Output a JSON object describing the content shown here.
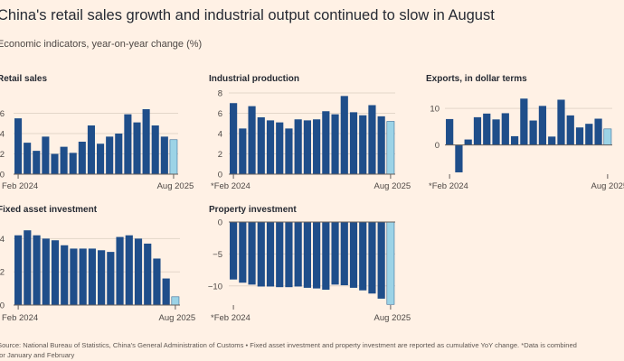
{
  "title": "China's retail sales growth and industrial output continued to slow in August",
  "subtitle": "Economic indicators, year-on-year change (%)",
  "source_line1": "Source: National Bureau of Statistics, China's General Administration of Customs • Fixed asset investment and property investment are reported as cumulative YoY change. *Data is combined",
  "source_line2": "for January and February",
  "colors": {
    "bar": "#1f4e8a",
    "highlight": "#9cd3e6",
    "highlight_stroke": "#3a6f9c",
    "grid": "#e3d6c9",
    "axis": "#66605c"
  },
  "chart_data": [
    {
      "type": "bar",
      "title": "Retail sales",
      "x": [
        "Feb 2024",
        "Mar 2024",
        "Apr 2024",
        "May 2024",
        "Jun 2024",
        "Jul 2024",
        "Aug 2024",
        "Sep 2024",
        "Oct 2024",
        "Nov 2024",
        "Dec 2024",
        "Jan-Feb 2025",
        "Mar 2025",
        "Apr 2025",
        "May 2025",
        "Jun 2025",
        "Jul 2025",
        "Aug 2025"
      ],
      "values": [
        5.5,
        3.1,
        2.3,
        3.7,
        2.0,
        2.7,
        2.1,
        3.2,
        4.8,
        3.0,
        3.7,
        4.0,
        5.9,
        5.1,
        6.4,
        4.8,
        3.7,
        3.4
      ],
      "ylim": [
        0,
        8
      ],
      "yticks": [
        0,
        2,
        4,
        6
      ],
      "xtick_labels": [
        "Feb 2024",
        "Aug 2025"
      ],
      "highlight_last": true
    },
    {
      "type": "bar",
      "title": "Industrial production",
      "x": [
        "Feb 2024",
        "Mar 2024",
        "Apr 2024",
        "May 2024",
        "Jun 2024",
        "Jul 2024",
        "Aug 2024",
        "Sep 2024",
        "Oct 2024",
        "Nov 2024",
        "Dec 2024",
        "Jan-Feb 2025",
        "Mar 2025",
        "Apr 2025",
        "May 2025",
        "Jun 2025",
        "Jul 2025",
        "Aug 2025"
      ],
      "values": [
        7.0,
        4.5,
        6.7,
        5.6,
        5.3,
        5.1,
        4.5,
        5.4,
        5.3,
        5.4,
        6.2,
        5.9,
        7.7,
        6.1,
        5.8,
        6.8,
        5.7,
        5.2
      ],
      "ylim": [
        0,
        8
      ],
      "yticks": [
        0,
        2,
        4,
        6,
        8
      ],
      "xtick_labels": [
        "*Feb 2024",
        "Aug 2025"
      ],
      "highlight_last": true
    },
    {
      "type": "bar",
      "title": "Exports, in dollar terms",
      "x": [
        "Feb 2024",
        "Mar 2024",
        "Apr 2024",
        "May 2024",
        "Jun 2024",
        "Jul 2024",
        "Aug 2024",
        "Sep 2024",
        "Oct 2024",
        "Nov 2024",
        "Dec 2024",
        "Jan-Feb 2025",
        "Mar 2025",
        "Apr 2025",
        "May 2025",
        "Jun 2025",
        "Jul 2025",
        "Aug 2025"
      ],
      "values": [
        7.1,
        -7.5,
        1.5,
        7.6,
        8.6,
        7.0,
        8.7,
        2.4,
        12.7,
        6.7,
        10.7,
        2.3,
        12.4,
        8.1,
        4.8,
        5.8,
        7.2,
        4.4
      ],
      "ylim": [
        -8,
        14
      ],
      "yticks": [
        0,
        10
      ],
      "xtick_labels": [
        "*Feb 2024",
        "Aug 2025"
      ],
      "highlight_last": true
    },
    {
      "type": "bar",
      "title": "Fixed asset investment",
      "x": [
        "Feb 2024",
        "Mar 2024",
        "Apr 2024",
        "May 2024",
        "Jun 2024",
        "Jul 2024",
        "Aug 2024",
        "Sep 2024",
        "Oct 2024",
        "Nov 2024",
        "Dec 2024",
        "Jan-Feb 2025",
        "Mar 2025",
        "Apr 2025",
        "May 2025",
        "Jun 2025",
        "Jul 2025",
        "Aug 2025"
      ],
      "values": [
        4.2,
        4.5,
        4.2,
        4.0,
        3.9,
        3.6,
        3.4,
        3.4,
        3.4,
        3.3,
        3.2,
        4.1,
        4.2,
        4.0,
        3.7,
        2.8,
        1.6,
        0.5
      ],
      "ylim": [
        0,
        5
      ],
      "yticks": [
        0,
        2,
        4
      ],
      "xtick_labels": [
        "Feb 2024",
        "Aug 2025"
      ],
      "highlight_last": true
    },
    {
      "type": "bar",
      "title": "Property investment",
      "x": [
        "Feb 2024",
        "Mar 2024",
        "Apr 2024",
        "May 2024",
        "Jun 2024",
        "Jul 2024",
        "Aug 2024",
        "Sep 2024",
        "Oct 2024",
        "Nov 2024",
        "Dec 2024",
        "Jan-Feb 2025",
        "Mar 2025",
        "Apr 2025",
        "May 2025",
        "Jun 2025",
        "Jul 2025",
        "Aug 2025"
      ],
      "values": [
        -9.0,
        -9.5,
        -9.8,
        -10.1,
        -10.1,
        -10.2,
        -10.2,
        -10.1,
        -10.3,
        -10.4,
        -10.6,
        -9.8,
        -9.9,
        -10.3,
        -10.7,
        -11.2,
        -12.0,
        -12.9
      ],
      "ylim": [
        -13,
        0
      ],
      "yticks": [
        0,
        -5,
        -10
      ],
      "xtick_labels": [
        "*Feb 2024",
        "Aug 2025"
      ],
      "highlight_last": true
    }
  ]
}
